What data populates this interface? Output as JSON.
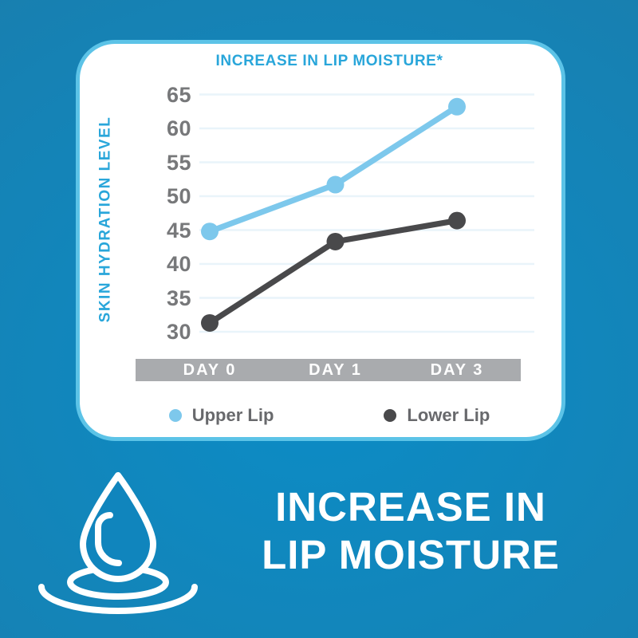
{
  "chart_data": {
    "type": "line",
    "title": "INCREASE IN LIP MOISTURE*",
    "ylabel": "SKIN HYDRATION LEVEL",
    "categories": [
      "DAY 0",
      "DAY 1",
      "DAY 3"
    ],
    "series": [
      {
        "name": "Upper Lip",
        "color": "#7dc8ec",
        "values": [
          44.8,
          51.7,
          63.2
        ]
      },
      {
        "name": "Lower Lip",
        "color": "#49494b",
        "values": [
          31.3,
          43.3,
          46.4
        ]
      }
    ],
    "ylim": [
      30,
      65
    ],
    "yticks": [
      65,
      60,
      55,
      50,
      45,
      40,
      35,
      30
    ],
    "grid": true,
    "legend_position": "bottom"
  },
  "banner": {
    "line1": "INCREASE IN",
    "line2": "LIP MOISTURE",
    "icon": "water-drop-ripple-icon"
  },
  "colors": {
    "background": "#1583b6",
    "accent_blue": "#29a6da",
    "card_border": "#5cc3e7",
    "gridline": "#e9f4fa",
    "tick_label": "#77787a",
    "axis_band": "#a9abae",
    "legend_text": "#68696c",
    "upper_lip": "#7dc8ec",
    "lower_lip": "#49494b",
    "drop_fill": "#1085bd"
  }
}
